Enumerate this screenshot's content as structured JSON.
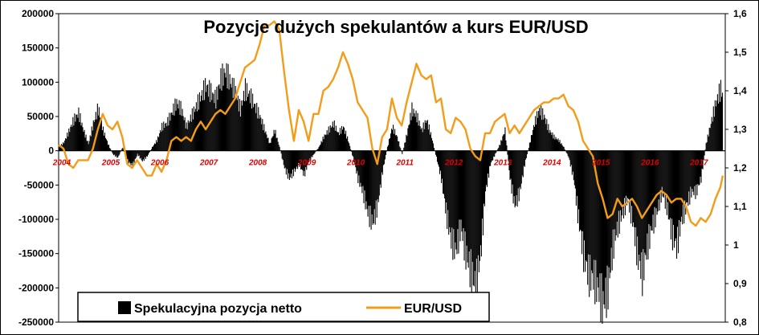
{
  "chart_data": {
    "type": "bar+line",
    "title": "Pozycje dużych spekulantów a kurs EUR/USD",
    "colors": {
      "position": "#000000",
      "eurusd": "#f39c1a",
      "year_labels": "#e00000"
    },
    "left_axis": {
      "min": -250000,
      "max": 200000,
      "ticks": [
        "200000",
        "150000",
        "100000",
        "50000",
        "0",
        "-50000",
        "-100000",
        "-150000",
        "-200000",
        "-250000"
      ]
    },
    "right_axis": {
      "min": 0.8,
      "max": 1.6,
      "ticks": [
        "1,6",
        "1,5",
        "1,4",
        "1,3",
        "1,2",
        "1,1",
        "1",
        "0,9",
        "0,8"
      ]
    },
    "years": [
      "2004",
      "2005",
      "2006",
      "2007",
      "2008",
      "2009",
      "2010",
      "2011",
      "2012",
      "2013",
      "2014",
      "2015",
      "2016",
      "2017"
    ],
    "x_start": 2004.0,
    "x_end": 2017.6,
    "legend": {
      "position": "bottom-left",
      "items": [
        "Spekulacyjna pozycja netto",
        "EUR/USD"
      ]
    },
    "series": [
      {
        "name": "Spekulacyjna pozycja netto",
        "kind": "bar",
        "points": [
          [
            2004.0,
            5000
          ],
          [
            2004.1,
            12000
          ],
          [
            2004.2,
            28000
          ],
          [
            2004.3,
            45000
          ],
          [
            2004.4,
            55000
          ],
          [
            2004.5,
            30000
          ],
          [
            2004.6,
            10000
          ],
          [
            2004.7,
            40000
          ],
          [
            2004.8,
            62000
          ],
          [
            2004.9,
            30000
          ],
          [
            2005.0,
            10000
          ],
          [
            2005.1,
            -5000
          ],
          [
            2005.2,
            -10000
          ],
          [
            2005.3,
            5000
          ],
          [
            2005.4,
            -15000
          ],
          [
            2005.5,
            -22000
          ],
          [
            2005.6,
            -5000
          ],
          [
            2005.7,
            -15000
          ],
          [
            2005.8,
            -8000
          ],
          [
            2005.9,
            5000
          ],
          [
            2006.0,
            15000
          ],
          [
            2006.1,
            35000
          ],
          [
            2006.2,
            40000
          ],
          [
            2006.3,
            55000
          ],
          [
            2006.4,
            70000
          ],
          [
            2006.5,
            60000
          ],
          [
            2006.6,
            35000
          ],
          [
            2006.7,
            50000
          ],
          [
            2006.8,
            65000
          ],
          [
            2006.9,
            80000
          ],
          [
            2007.0,
            95000
          ],
          [
            2007.1,
            85000
          ],
          [
            2007.2,
            75000
          ],
          [
            2007.3,
            105000
          ],
          [
            2007.4,
            115000
          ],
          [
            2007.5,
            100000
          ],
          [
            2007.6,
            85000
          ],
          [
            2007.7,
            60000
          ],
          [
            2007.8,
            90000
          ],
          [
            2007.9,
            80000
          ],
          [
            2008.0,
            65000
          ],
          [
            2008.1,
            50000
          ],
          [
            2008.2,
            30000
          ],
          [
            2008.3,
            10000
          ],
          [
            2008.4,
            30000
          ],
          [
            2008.5,
            5000
          ],
          [
            2008.6,
            -25000
          ],
          [
            2008.7,
            -40000
          ],
          [
            2008.8,
            -30000
          ],
          [
            2008.9,
            -20000
          ],
          [
            2009.0,
            -35000
          ],
          [
            2009.1,
            -15000
          ],
          [
            2009.2,
            -5000
          ],
          [
            2009.3,
            5000
          ],
          [
            2009.4,
            20000
          ],
          [
            2009.5,
            30000
          ],
          [
            2009.6,
            40000
          ],
          [
            2009.7,
            25000
          ],
          [
            2009.8,
            35000
          ],
          [
            2009.9,
            15000
          ],
          [
            2010.0,
            -10000
          ],
          [
            2010.1,
            -40000
          ],
          [
            2010.2,
            -60000
          ],
          [
            2010.3,
            -90000
          ],
          [
            2010.4,
            -105000
          ],
          [
            2010.5,
            -80000
          ],
          [
            2010.6,
            -30000
          ],
          [
            2010.7,
            5000
          ],
          [
            2010.8,
            35000
          ],
          [
            2010.9,
            20000
          ],
          [
            2011.0,
            -5000
          ],
          [
            2011.1,
            25000
          ],
          [
            2011.2,
            60000
          ],
          [
            2011.3,
            50000
          ],
          [
            2011.4,
            30000
          ],
          [
            2011.5,
            45000
          ],
          [
            2011.6,
            20000
          ],
          [
            2011.7,
            -10000
          ],
          [
            2011.8,
            -40000
          ],
          [
            2011.9,
            -90000
          ],
          [
            2012.0,
            -130000
          ],
          [
            2012.1,
            -145000
          ],
          [
            2012.2,
            -110000
          ],
          [
            2012.3,
            -150000
          ],
          [
            2012.4,
            -175000
          ],
          [
            2012.5,
            -200000
          ],
          [
            2012.6,
            -150000
          ],
          [
            2012.7,
            -60000
          ],
          [
            2012.8,
            -20000
          ],
          [
            2012.9,
            -5000
          ],
          [
            2013.0,
            10000
          ],
          [
            2013.1,
            30000
          ],
          [
            2013.2,
            -40000
          ],
          [
            2013.3,
            -80000
          ],
          [
            2013.4,
            -60000
          ],
          [
            2013.5,
            -20000
          ],
          [
            2013.6,
            10000
          ],
          [
            2013.7,
            40000
          ],
          [
            2013.8,
            60000
          ],
          [
            2013.9,
            50000
          ],
          [
            2014.0,
            30000
          ],
          [
            2014.1,
            20000
          ],
          [
            2014.2,
            15000
          ],
          [
            2014.3,
            5000
          ],
          [
            2014.4,
            -10000
          ],
          [
            2014.5,
            -40000
          ],
          [
            2014.6,
            -100000
          ],
          [
            2014.7,
            -150000
          ],
          [
            2014.8,
            -180000
          ],
          [
            2014.9,
            -185000
          ],
          [
            2015.0,
            -200000
          ],
          [
            2015.1,
            -225000
          ],
          [
            2015.2,
            -200000
          ],
          [
            2015.3,
            -140000
          ],
          [
            2015.4,
            -110000
          ],
          [
            2015.5,
            -90000
          ],
          [
            2015.6,
            -70000
          ],
          [
            2015.7,
            -100000
          ],
          [
            2015.8,
            -150000
          ],
          [
            2015.9,
            -180000
          ],
          [
            2016.0,
            -140000
          ],
          [
            2016.1,
            -110000
          ],
          [
            2016.2,
            -90000
          ],
          [
            2016.3,
            -60000
          ],
          [
            2016.4,
            -80000
          ],
          [
            2016.5,
            -120000
          ],
          [
            2016.6,
            -140000
          ],
          [
            2016.7,
            -100000
          ],
          [
            2016.8,
            -80000
          ],
          [
            2016.9,
            -60000
          ],
          [
            2017.0,
            -60000
          ],
          [
            2017.1,
            -40000
          ],
          [
            2017.2,
            10000
          ],
          [
            2017.3,
            40000
          ],
          [
            2017.4,
            70000
          ],
          [
            2017.5,
            90000
          ],
          [
            2017.55,
            80000
          ]
        ]
      },
      {
        "name": "EUR/USD",
        "kind": "line",
        "points": [
          [
            2004.0,
            1.26
          ],
          [
            2004.1,
            1.25
          ],
          [
            2004.2,
            1.21
          ],
          [
            2004.3,
            1.2
          ],
          [
            2004.4,
            1.22
          ],
          [
            2004.5,
            1.22
          ],
          [
            2004.6,
            1.22
          ],
          [
            2004.7,
            1.25
          ],
          [
            2004.8,
            1.3
          ],
          [
            2004.9,
            1.34
          ],
          [
            2005.0,
            1.31
          ],
          [
            2005.1,
            1.3
          ],
          [
            2005.2,
            1.32
          ],
          [
            2005.3,
            1.28
          ],
          [
            2005.4,
            1.21
          ],
          [
            2005.5,
            1.2
          ],
          [
            2005.6,
            1.22
          ],
          [
            2005.7,
            1.2
          ],
          [
            2005.8,
            1.18
          ],
          [
            2005.9,
            1.18
          ],
          [
            2006.0,
            1.21
          ],
          [
            2006.1,
            1.19
          ],
          [
            2006.2,
            1.22
          ],
          [
            2006.3,
            1.27
          ],
          [
            2006.4,
            1.28
          ],
          [
            2006.5,
            1.27
          ],
          [
            2006.6,
            1.28
          ],
          [
            2006.7,
            1.27
          ],
          [
            2006.8,
            1.3
          ],
          [
            2006.9,
            1.32
          ],
          [
            2007.0,
            1.3
          ],
          [
            2007.1,
            1.32
          ],
          [
            2007.2,
            1.34
          ],
          [
            2007.3,
            1.35
          ],
          [
            2007.4,
            1.34
          ],
          [
            2007.5,
            1.36
          ],
          [
            2007.6,
            1.38
          ],
          [
            2007.7,
            1.42
          ],
          [
            2007.8,
            1.46
          ],
          [
            2007.9,
            1.47
          ],
          [
            2008.0,
            1.48
          ],
          [
            2008.1,
            1.52
          ],
          [
            2008.2,
            1.57
          ],
          [
            2008.3,
            1.57
          ],
          [
            2008.4,
            1.58
          ],
          [
            2008.5,
            1.56
          ],
          [
            2008.6,
            1.45
          ],
          [
            2008.7,
            1.35
          ],
          [
            2008.8,
            1.27
          ],
          [
            2008.9,
            1.35
          ],
          [
            2009.0,
            1.32
          ],
          [
            2009.1,
            1.27
          ],
          [
            2009.2,
            1.34
          ],
          [
            2009.3,
            1.34
          ],
          [
            2009.4,
            1.4
          ],
          [
            2009.5,
            1.41
          ],
          [
            2009.6,
            1.43
          ],
          [
            2009.7,
            1.46
          ],
          [
            2009.8,
            1.5
          ],
          [
            2009.9,
            1.47
          ],
          [
            2010.0,
            1.43
          ],
          [
            2010.1,
            1.37
          ],
          [
            2010.2,
            1.35
          ],
          [
            2010.3,
            1.33
          ],
          [
            2010.4,
            1.25
          ],
          [
            2010.5,
            1.21
          ],
          [
            2010.6,
            1.28
          ],
          [
            2010.7,
            1.3
          ],
          [
            2010.8,
            1.38
          ],
          [
            2010.9,
            1.33
          ],
          [
            2011.0,
            1.31
          ],
          [
            2011.1,
            1.37
          ],
          [
            2011.2,
            1.42
          ],
          [
            2011.3,
            1.47
          ],
          [
            2011.4,
            1.44
          ],
          [
            2011.5,
            1.43
          ],
          [
            2011.6,
            1.44
          ],
          [
            2011.7,
            1.37
          ],
          [
            2011.8,
            1.38
          ],
          [
            2011.9,
            1.3
          ],
          [
            2012.0,
            1.29
          ],
          [
            2012.1,
            1.33
          ],
          [
            2012.2,
            1.32
          ],
          [
            2012.3,
            1.3
          ],
          [
            2012.4,
            1.25
          ],
          [
            2012.5,
            1.23
          ],
          [
            2012.6,
            1.22
          ],
          [
            2012.7,
            1.29
          ],
          [
            2012.8,
            1.29
          ],
          [
            2012.9,
            1.32
          ],
          [
            2013.0,
            1.33
          ],
          [
            2013.1,
            1.34
          ],
          [
            2013.2,
            1.29
          ],
          [
            2013.3,
            1.31
          ],
          [
            2013.4,
            1.29
          ],
          [
            2013.5,
            1.31
          ],
          [
            2013.6,
            1.33
          ],
          [
            2013.7,
            1.35
          ],
          [
            2013.8,
            1.36
          ],
          [
            2013.9,
            1.37
          ],
          [
            2014.0,
            1.37
          ],
          [
            2014.1,
            1.38
          ],
          [
            2014.2,
            1.38
          ],
          [
            2014.3,
            1.39
          ],
          [
            2014.4,
            1.36
          ],
          [
            2014.5,
            1.35
          ],
          [
            2014.6,
            1.32
          ],
          [
            2014.7,
            1.27
          ],
          [
            2014.8,
            1.25
          ],
          [
            2014.9,
            1.23
          ],
          [
            2015.0,
            1.16
          ],
          [
            2015.1,
            1.12
          ],
          [
            2015.2,
            1.07
          ],
          [
            2015.3,
            1.08
          ],
          [
            2015.4,
            1.12
          ],
          [
            2015.5,
            1.1
          ],
          [
            2015.6,
            1.11
          ],
          [
            2015.7,
            1.12
          ],
          [
            2015.8,
            1.1
          ],
          [
            2015.9,
            1.07
          ],
          [
            2016.0,
            1.09
          ],
          [
            2016.1,
            1.11
          ],
          [
            2016.2,
            1.13
          ],
          [
            2016.3,
            1.14
          ],
          [
            2016.4,
            1.13
          ],
          [
            2016.5,
            1.11
          ],
          [
            2016.6,
            1.12
          ],
          [
            2016.7,
            1.12
          ],
          [
            2016.8,
            1.1
          ],
          [
            2016.9,
            1.06
          ],
          [
            2017.0,
            1.05
          ],
          [
            2017.1,
            1.07
          ],
          [
            2017.2,
            1.06
          ],
          [
            2017.3,
            1.08
          ],
          [
            2017.4,
            1.12
          ],
          [
            2017.5,
            1.15
          ],
          [
            2017.55,
            1.18
          ]
        ]
      }
    ]
  }
}
